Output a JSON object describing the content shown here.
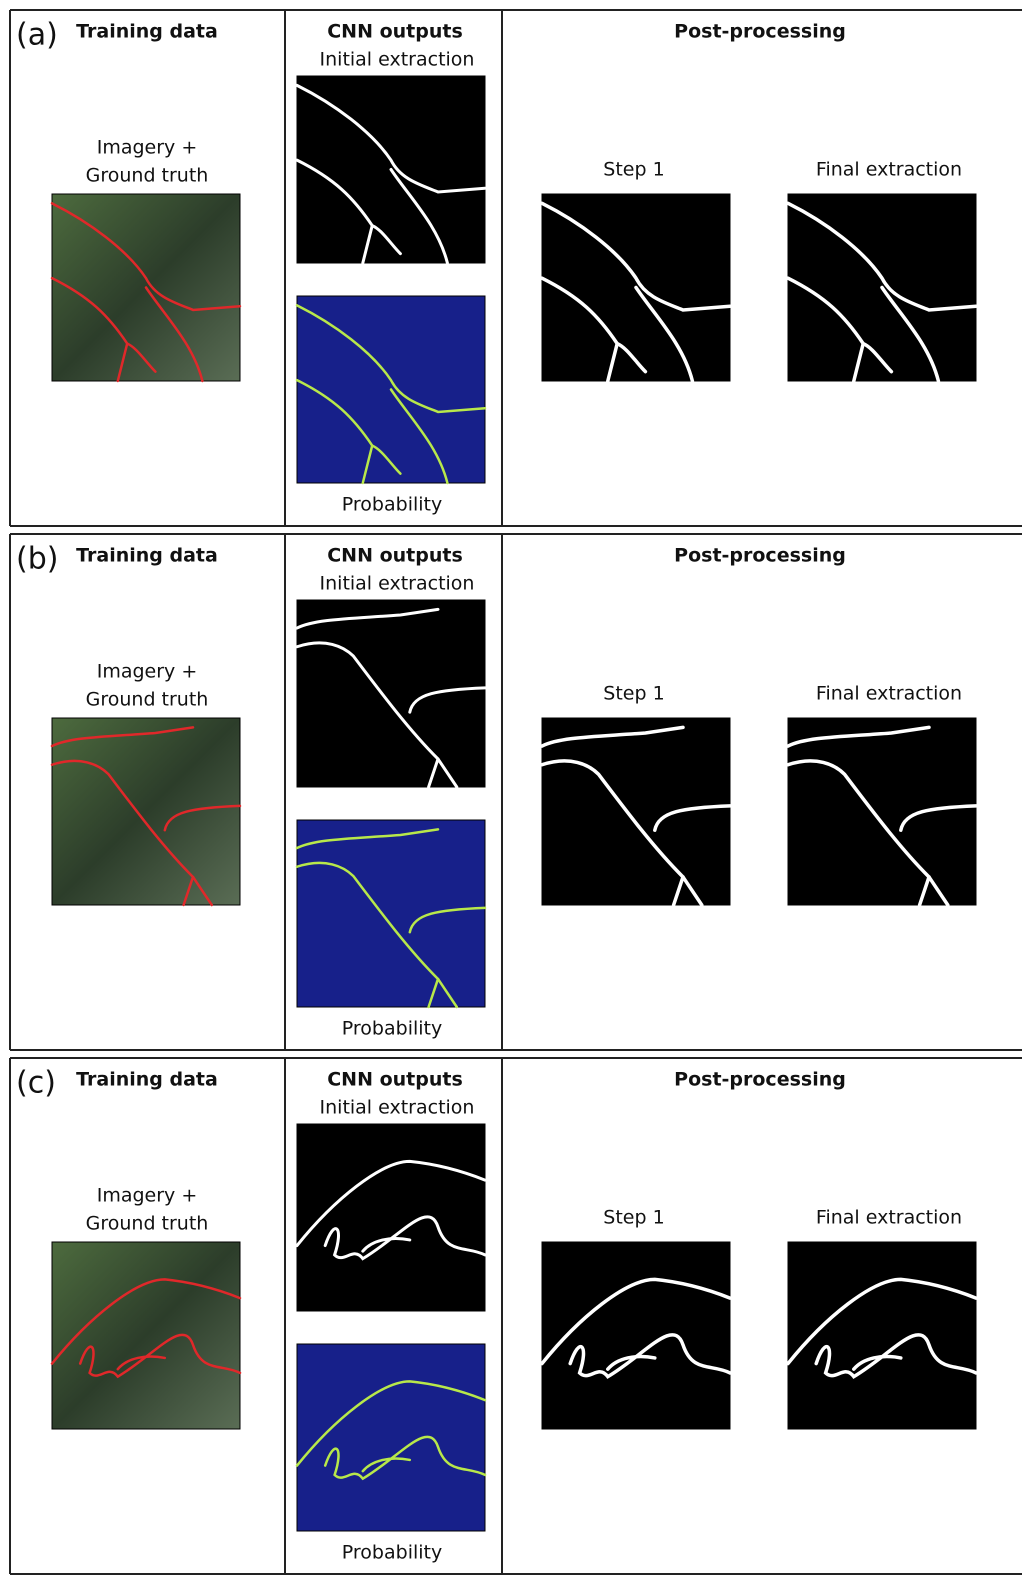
{
  "panels": [
    {
      "label": "(a)",
      "training": {
        "title": "Training data",
        "caption": [
          "Imagery +",
          "Ground truth"
        ]
      },
      "cnn": {
        "title": "CNN outputs",
        "top_caption": "Initial extraction",
        "bottom_caption": "Probability"
      },
      "post": {
        "title": "Post-processing",
        "step1": "Step 1",
        "final": "Final extraction"
      }
    },
    {
      "label": "(b)",
      "training": {
        "title": "Training data",
        "caption": [
          "Imagery +",
          "Ground truth"
        ]
      },
      "cnn": {
        "title": "CNN outputs",
        "top_caption": "Initial extraction",
        "bottom_caption": "Probability"
      },
      "post": {
        "title": "Post-processing",
        "step1": "Step 1",
        "final": "Final extraction"
      }
    },
    {
      "label": "(c)",
      "training": {
        "title": "Training data",
        "caption": [
          "Imagery +",
          "Ground truth"
        ]
      },
      "cnn": {
        "title": "CNN outputs",
        "top_caption": "Initial extraction",
        "bottom_caption": "Probability"
      },
      "post": {
        "title": "Post-processing",
        "step1": "Step 1",
        "final": "Final extraction"
      }
    }
  ]
}
